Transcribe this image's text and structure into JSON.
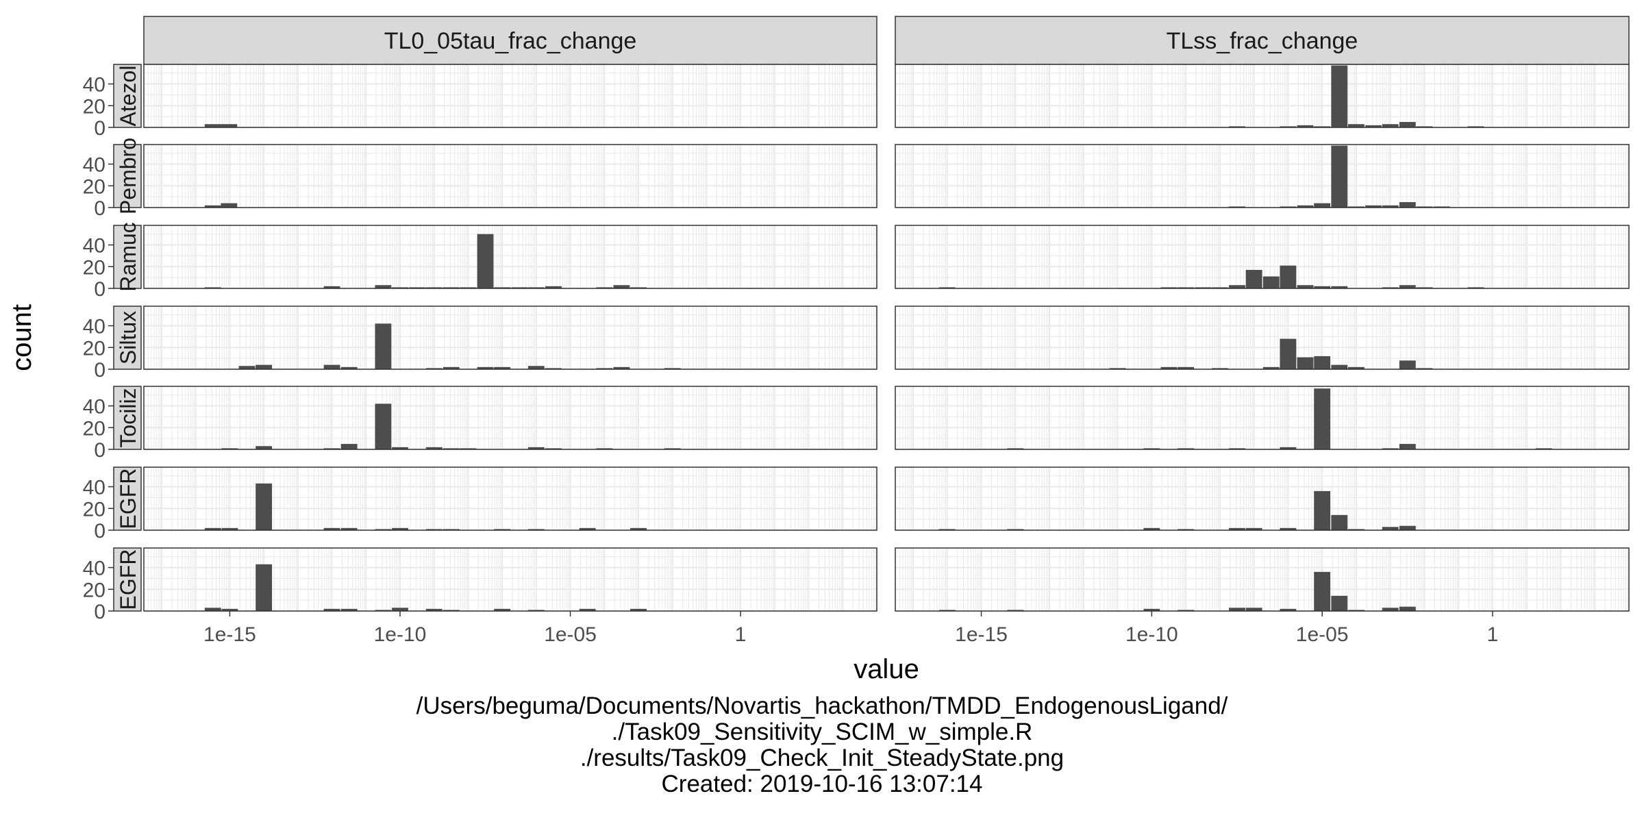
{
  "chart_data": {
    "type": "bar",
    "subtype": "faceted histogram",
    "xlabel": "value",
    "ylabel": "count",
    "x_scale": "log10",
    "xlim": [
      3e-18,
      10000.0
    ],
    "x_ticks": [
      1e-15,
      1e-10,
      1e-05,
      1
    ],
    "x_tick_labels": [
      "1e-15",
      "1e-10",
      "1e-05",
      "1"
    ],
    "ylim": [
      0,
      58
    ],
    "y_ticks": [
      0,
      20,
      40
    ],
    "y_tick_labels": [
      "0",
      "20",
      "40"
    ],
    "grid": true,
    "bin_log10_width": 0.48,
    "columns": [
      "TL0_05tau_frac_change",
      "TLss_frac_change"
    ],
    "rows": [
      "Atezol",
      "Pembro",
      "Ramuc",
      "Siltux",
      "Tociliz",
      "EGFR",
      "EGFR"
    ],
    "panels": [
      {
        "row": "Atezol",
        "column": "TL0_05tau_frac_change",
        "bins": [
          {
            "x": 3.2e-16,
            "count": 3
          },
          {
            "x": 9.5e-16,
            "count": 3
          }
        ]
      },
      {
        "row": "Atezol",
        "column": "TLss_frac_change",
        "bins": [
          {
            "x": 3.2e-08,
            "count": 1
          },
          {
            "x": 1e-06,
            "count": 1
          },
          {
            "x": 3.2e-06,
            "count": 2
          },
          {
            "x": 1e-05,
            "count": 1
          },
          {
            "x": 3.2e-05,
            "count": 57
          },
          {
            "x": 0.0001,
            "count": 3
          },
          {
            "x": 0.00032,
            "count": 2
          },
          {
            "x": 0.001,
            "count": 3
          },
          {
            "x": 0.0032,
            "count": 5
          },
          {
            "x": 0.01,
            "count": 1
          },
          {
            "x": 0.32,
            "count": 1
          }
        ]
      },
      {
        "row": "Pembro",
        "column": "TL0_05tau_frac_change",
        "bins": [
          {
            "x": 3.2e-16,
            "count": 2
          },
          {
            "x": 9.5e-16,
            "count": 4
          }
        ]
      },
      {
        "row": "Pembro",
        "column": "TLss_frac_change",
        "bins": [
          {
            "x": 3.2e-08,
            "count": 1
          },
          {
            "x": 1e-06,
            "count": 1
          },
          {
            "x": 3.2e-06,
            "count": 2
          },
          {
            "x": 1e-05,
            "count": 4
          },
          {
            "x": 3.2e-05,
            "count": 57
          },
          {
            "x": 0.0001,
            "count": 1
          },
          {
            "x": 0.00032,
            "count": 2
          },
          {
            "x": 0.001,
            "count": 2
          },
          {
            "x": 0.0032,
            "count": 5
          },
          {
            "x": 0.01,
            "count": 1
          },
          {
            "x": 0.032,
            "count": 1
          }
        ]
      },
      {
        "row": "Ramuc",
        "column": "TL0_05tau_frac_change",
        "bins": [
          {
            "x": 3.2e-16,
            "count": 1
          },
          {
            "x": 1e-12,
            "count": 2
          },
          {
            "x": 3.2e-11,
            "count": 3
          },
          {
            "x": 1e-10,
            "count": 1
          },
          {
            "x": 3.2e-10,
            "count": 1
          },
          {
            "x": 1e-09,
            "count": 1
          },
          {
            "x": 3.2e-09,
            "count": 1
          },
          {
            "x": 1e-08,
            "count": 1
          },
          {
            "x": 3.2e-08,
            "count": 50
          },
          {
            "x": 1e-07,
            "count": 1
          },
          {
            "x": 3.2e-07,
            "count": 1
          },
          {
            "x": 1e-06,
            "count": 1
          },
          {
            "x": 3.2e-06,
            "count": 2
          },
          {
            "x": 0.0001,
            "count": 1
          },
          {
            "x": 0.00032,
            "count": 3
          },
          {
            "x": 0.001,
            "count": 1
          }
        ]
      },
      {
        "row": "Ramuc",
        "column": "TLss_frac_change",
        "bins": [
          {
            "x": 1e-16,
            "count": 1
          },
          {
            "x": 3.2e-10,
            "count": 1
          },
          {
            "x": 1e-09,
            "count": 1
          },
          {
            "x": 3.2e-09,
            "count": 1
          },
          {
            "x": 1e-08,
            "count": 1
          },
          {
            "x": 3.2e-08,
            "count": 3
          },
          {
            "x": 1e-07,
            "count": 17
          },
          {
            "x": 3.2e-07,
            "count": 11
          },
          {
            "x": 1e-06,
            "count": 21
          },
          {
            "x": 3.2e-06,
            "count": 3
          },
          {
            "x": 1e-05,
            "count": 2
          },
          {
            "x": 3.2e-05,
            "count": 2
          },
          {
            "x": 0.001,
            "count": 1
          },
          {
            "x": 0.0032,
            "count": 3
          },
          {
            "x": 0.01,
            "count": 1
          },
          {
            "x": 0.32,
            "count": 1
          }
        ]
      },
      {
        "row": "Siltux",
        "column": "TL0_05tau_frac_change",
        "bins": [
          {
            "x": 3.2e-15,
            "count": 3
          },
          {
            "x": 1e-14,
            "count": 4
          },
          {
            "x": 1e-12,
            "count": 4
          },
          {
            "x": 3.2e-12,
            "count": 2
          },
          {
            "x": 3.2e-11,
            "count": 42
          },
          {
            "x": 1e-09,
            "count": 1
          },
          {
            "x": 3.2e-09,
            "count": 2
          },
          {
            "x": 3.2e-08,
            "count": 2
          },
          {
            "x": 1e-07,
            "count": 2
          },
          {
            "x": 1e-06,
            "count": 3
          },
          {
            "x": 3.2e-06,
            "count": 1
          },
          {
            "x": 0.0001,
            "count": 1
          },
          {
            "x": 0.00032,
            "count": 2
          },
          {
            "x": 0.01,
            "count": 1
          }
        ]
      },
      {
        "row": "Siltux",
        "column": "TLss_frac_change",
        "bins": [
          {
            "x": 1e-11,
            "count": 1
          },
          {
            "x": 3.2e-10,
            "count": 2
          },
          {
            "x": 1e-09,
            "count": 2
          },
          {
            "x": 1e-08,
            "count": 1
          },
          {
            "x": 3.2e-07,
            "count": 2
          },
          {
            "x": 1e-06,
            "count": 28
          },
          {
            "x": 3.2e-06,
            "count": 11
          },
          {
            "x": 1e-05,
            "count": 12
          },
          {
            "x": 3.2e-05,
            "count": 4
          },
          {
            "x": 0.0001,
            "count": 2
          },
          {
            "x": 0.0032,
            "count": 8
          },
          {
            "x": 0.01,
            "count": 1
          }
        ]
      },
      {
        "row": "Tociliz",
        "column": "TL0_05tau_frac_change",
        "bins": [
          {
            "x": 1e-15,
            "count": 1
          },
          {
            "x": 1e-14,
            "count": 3
          },
          {
            "x": 1e-12,
            "count": 1
          },
          {
            "x": 3.2e-12,
            "count": 5
          },
          {
            "x": 3.2e-11,
            "count": 42
          },
          {
            "x": 1e-10,
            "count": 2
          },
          {
            "x": 1e-09,
            "count": 2
          },
          {
            "x": 3.2e-09,
            "count": 1
          },
          {
            "x": 1e-08,
            "count": 1
          },
          {
            "x": 1e-06,
            "count": 2
          },
          {
            "x": 3.2e-06,
            "count": 1
          },
          {
            "x": 0.0001,
            "count": 1
          },
          {
            "x": 0.01,
            "count": 1
          }
        ]
      },
      {
        "row": "Tociliz",
        "column": "TLss_frac_change",
        "bins": [
          {
            "x": 1e-14,
            "count": 1
          },
          {
            "x": 1e-10,
            "count": 1
          },
          {
            "x": 1e-09,
            "count": 1
          },
          {
            "x": 3.2e-08,
            "count": 1
          },
          {
            "x": 1e-06,
            "count": 2
          },
          {
            "x": 1e-05,
            "count": 56
          },
          {
            "x": 0.001,
            "count": 1
          },
          {
            "x": 0.0032,
            "count": 5
          },
          {
            "x": 32.0,
            "count": 1
          }
        ]
      },
      {
        "row": "EGFR",
        "column": "TL0_05tau_frac_change",
        "bins": [
          {
            "x": 3.2e-16,
            "count": 2
          },
          {
            "x": 1e-15,
            "count": 2
          },
          {
            "x": 1e-14,
            "count": 43
          },
          {
            "x": 1e-12,
            "count": 2
          },
          {
            "x": 3.2e-12,
            "count": 2
          },
          {
            "x": 3.2e-11,
            "count": 1
          },
          {
            "x": 1e-10,
            "count": 2
          },
          {
            "x": 1e-09,
            "count": 1
          },
          {
            "x": 3.2e-09,
            "count": 1
          },
          {
            "x": 1e-07,
            "count": 1
          },
          {
            "x": 1e-06,
            "count": 1
          },
          {
            "x": 3.2e-05,
            "count": 2
          },
          {
            "x": 0.001,
            "count": 2
          }
        ]
      },
      {
        "row": "EGFR",
        "column": "TLss_frac_change",
        "bins": [
          {
            "x": 1e-16,
            "count": 1
          },
          {
            "x": 1e-14,
            "count": 1
          },
          {
            "x": 1e-10,
            "count": 2
          },
          {
            "x": 1e-09,
            "count": 1
          },
          {
            "x": 3.2e-08,
            "count": 2
          },
          {
            "x": 1e-07,
            "count": 2
          },
          {
            "x": 1e-06,
            "count": 2
          },
          {
            "x": 1e-05,
            "count": 36
          },
          {
            "x": 3.2e-05,
            "count": 14
          },
          {
            "x": 0.0001,
            "count": 1
          },
          {
            "x": 0.001,
            "count": 3
          },
          {
            "x": 0.0032,
            "count": 4
          }
        ]
      },
      {
        "row": "EGFR",
        "column": "TL0_05tau_frac_change",
        "bins": [
          {
            "x": 3.2e-16,
            "count": 3
          },
          {
            "x": 1e-15,
            "count": 2
          },
          {
            "x": 1e-14,
            "count": 43
          },
          {
            "x": 1e-12,
            "count": 2
          },
          {
            "x": 3.2e-12,
            "count": 2
          },
          {
            "x": 3.2e-11,
            "count": 1
          },
          {
            "x": 1e-10,
            "count": 3
          },
          {
            "x": 1e-09,
            "count": 2
          },
          {
            "x": 3.2e-09,
            "count": 1
          },
          {
            "x": 1e-07,
            "count": 2
          },
          {
            "x": 1e-06,
            "count": 1
          },
          {
            "x": 3.2e-05,
            "count": 2
          },
          {
            "x": 0.001,
            "count": 2
          }
        ]
      },
      {
        "row": "EGFR",
        "column": "TLss_frac_change",
        "bins": [
          {
            "x": 1e-16,
            "count": 1
          },
          {
            "x": 1e-14,
            "count": 1
          },
          {
            "x": 1e-10,
            "count": 2
          },
          {
            "x": 1e-09,
            "count": 1
          },
          {
            "x": 3.2e-08,
            "count": 3
          },
          {
            "x": 1e-07,
            "count": 3
          },
          {
            "x": 1e-06,
            "count": 2
          },
          {
            "x": 1e-05,
            "count": 36
          },
          {
            "x": 3.2e-05,
            "count": 14
          },
          {
            "x": 0.0001,
            "count": 1
          },
          {
            "x": 0.001,
            "count": 3
          },
          {
            "x": 0.0032,
            "count": 4
          }
        ]
      }
    ]
  },
  "caption": {
    "line1": "/Users/beguma/Documents/Novartis_hackathon/TMDD_EndogenousLigand/",
    "line2": "./Task09_Sensitivity_SCIM_w_simple.R",
    "line3": "./results/Task09_Check_Init_SteadyState.png",
    "line4": "Created: 2019-10-16 13:07:14"
  }
}
